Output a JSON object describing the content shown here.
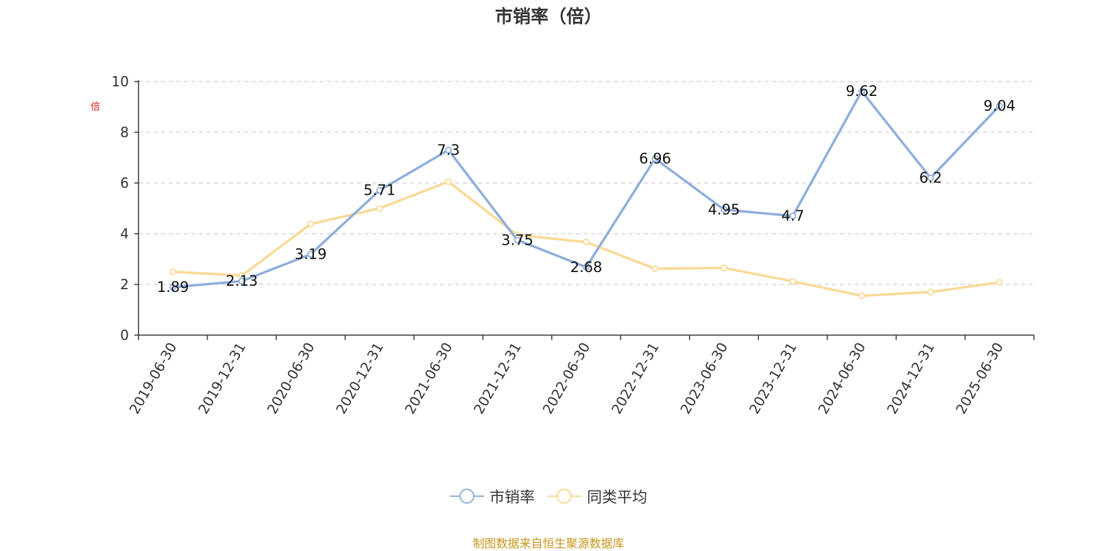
{
  "title": "市销率（倍）",
  "source_note": "制图数据来自恒生聚源数据库",
  "colors": {
    "series1": "#8eaedb",
    "series2": "#fad995",
    "grid": "#cccccc",
    "axis": "#333333",
    "ylabel": "#e02020"
  },
  "chart_data": {
    "type": "line",
    "title": "市销率（倍）",
    "xlabel": "",
    "ylabel": "倍",
    "ylim": [
      0,
      10
    ],
    "yticks": [
      0,
      2,
      4,
      6,
      8,
      10
    ],
    "grid": true,
    "legend_position": "bottom-center",
    "x": [
      "2019-06-30",
      "2019-12-31",
      "2020-06-30",
      "2020-12-31",
      "2021-06-30",
      "2021-12-31",
      "2022-06-30",
      "2022-12-31",
      "2023-06-30",
      "2023-12-31",
      "2024-06-30",
      "2024-12-31",
      "2025-06-30"
    ],
    "series": [
      {
        "name": "市销率",
        "values": [
          1.89,
          2.13,
          3.19,
          5.71,
          7.3,
          3.75,
          2.68,
          6.96,
          4.95,
          4.7,
          9.62,
          6.2,
          9.04
        ],
        "labels": [
          "1.89",
          "2.13",
          "3.19",
          "5.71",
          "7.3",
          "3.75",
          "2.68",
          "6.96",
          "4.95",
          "4.7",
          "9.62",
          "6.2",
          "9.04"
        ]
      },
      {
        "name": "同类平均",
        "values": [
          2.5,
          2.35,
          4.38,
          5.0,
          6.05,
          3.95,
          3.67,
          2.62,
          2.65,
          2.12,
          1.55,
          1.7,
          2.08
        ]
      }
    ]
  }
}
